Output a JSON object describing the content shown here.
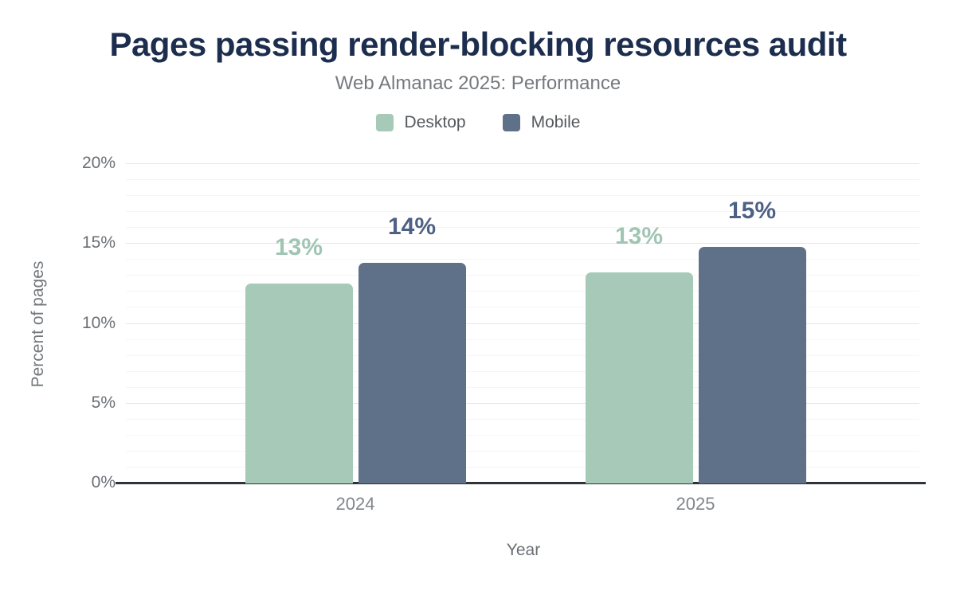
{
  "header": {
    "title": "Pages passing render-blocking resources audit",
    "subtitle": "Web Almanac 2025: Performance"
  },
  "chart_data": {
    "type": "bar",
    "title": "Pages passing render-blocking resources audit",
    "subtitle": "Web Almanac 2025: Performance",
    "categories": [
      "2024",
      "2025"
    ],
    "series": [
      {
        "name": "Desktop",
        "color": "#a6c9b8",
        "label_color": "#a0c5b3",
        "values": [
          12.5,
          13.2
        ],
        "labels": [
          "13%",
          "13%"
        ]
      },
      {
        "name": "Mobile",
        "color": "#5f7189",
        "label_color": "#4e6185",
        "values": [
          13.8,
          14.8
        ],
        "labels": [
          "14%",
          "15%"
        ]
      }
    ],
    "xlabel": "Year",
    "ylabel": "Percent of pages",
    "ylim": [
      0,
      20
    ],
    "yticks": [
      {
        "value": 0,
        "label": "0%"
      },
      {
        "value": 5,
        "label": "5%"
      },
      {
        "value": 10,
        "label": "10%"
      },
      {
        "value": 15,
        "label": "15%"
      },
      {
        "value": 20,
        "label": "20%"
      }
    ],
    "minor_grid_step": 1,
    "major_grid_step": 5,
    "grid": "on",
    "legend_position": "top",
    "colors": {
      "title": "#1c2d4e",
      "subtitle": "#76797d",
      "axis_text": "#6a6f74",
      "axis_line": "#2f3337",
      "grid_minor": "#f4f5f6",
      "grid_major": "#e5e7e9",
      "background": "#ffffff"
    }
  }
}
